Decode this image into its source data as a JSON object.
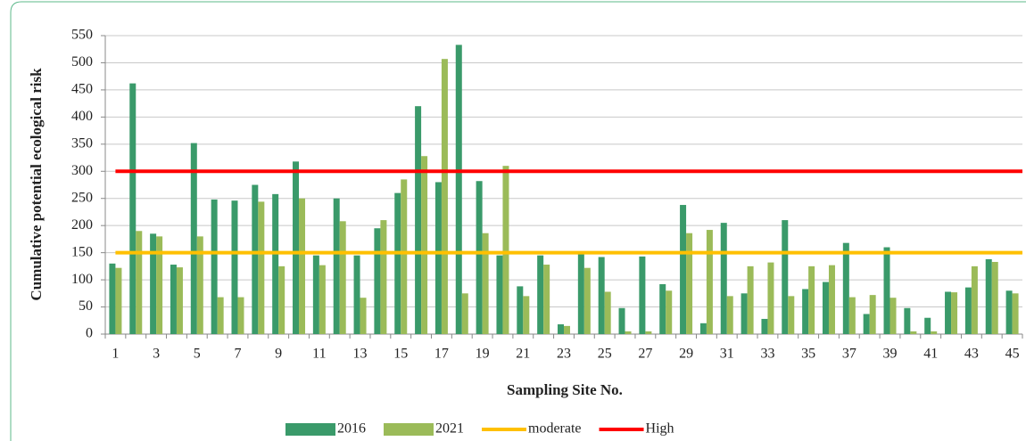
{
  "chart_data": {
    "type": "bar",
    "y_label": "Cumulative potential ecological risk",
    "x_label": "Sampling Site No.",
    "categories": [
      1,
      null,
      3,
      null,
      5,
      null,
      7,
      null,
      9,
      null,
      11,
      null,
      13,
      null,
      15,
      null,
      17,
      null,
      19,
      null,
      21,
      null,
      23,
      null,
      25,
      null,
      27,
      null,
      29,
      null,
      31,
      null,
      33,
      null,
      35,
      null,
      37,
      null,
      39,
      null,
      41,
      null,
      43,
      null,
      45
    ],
    "series": [
      {
        "name": "2016",
        "color": "#3a9a6a",
        "values": [
          130,
          462,
          185,
          128,
          352,
          248,
          246,
          275,
          258,
          318,
          145,
          250,
          145,
          195,
          260,
          420,
          280,
          533,
          282,
          145,
          88,
          145,
          18,
          148,
          142,
          48,
          143,
          92,
          238,
          20,
          205,
          75,
          28,
          210,
          83,
          96,
          168,
          37,
          160,
          48,
          30,
          78,
          86,
          138,
          80
        ]
      },
      {
        "name": "2021",
        "color": "#9bbb59",
        "values": [
          122,
          190,
          180,
          123,
          180,
          68,
          68,
          244,
          125,
          250,
          127,
          208,
          67,
          210,
          285,
          328,
          507,
          75,
          186,
          310,
          70,
          128,
          15,
          122,
          78,
          5,
          5,
          80,
          186,
          192,
          70,
          125,
          132,
          70,
          125,
          127,
          68,
          72,
          67,
          5,
          5,
          77,
          125,
          133,
          75
        ]
      }
    ],
    "hlines": [
      {
        "name": "moderate",
        "color": "#ffc000",
        "value": 150
      },
      {
        "name": "High",
        "color": "#ff0000",
        "value": 300
      }
    ],
    "ylim": [
      0,
      550
    ],
    "yticks": [
      0,
      50,
      100,
      150,
      200,
      250,
      300,
      350,
      400,
      450,
      500,
      550
    ],
    "grid": true
  }
}
